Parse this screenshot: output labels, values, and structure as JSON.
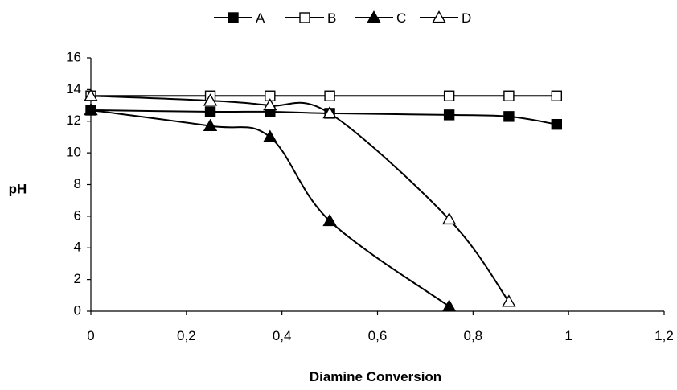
{
  "chart_data": {
    "type": "line",
    "title": "",
    "xlabel": "Diamine Conversion",
    "ylabel": "pH",
    "xlim": [
      0,
      1.2
    ],
    "ylim": [
      0,
      16
    ],
    "x_ticks": [
      "0",
      "0,2",
      "0,4",
      "0,6",
      "0,8",
      "1",
      "1,2"
    ],
    "y_ticks": [
      "0",
      "2",
      "4",
      "6",
      "8",
      "10",
      "12",
      "14",
      "16"
    ],
    "grid": false,
    "legend_position": "top",
    "series": [
      {
        "name": "A",
        "marker": "filled-square",
        "color": "#000000",
        "x": [
          0,
          0.25,
          0.375,
          0.5,
          0.75,
          0.875,
          0.975
        ],
        "y": [
          12.7,
          12.6,
          12.6,
          12.5,
          12.4,
          12.3,
          11.8
        ]
      },
      {
        "name": "B",
        "marker": "open-square",
        "color": "#000000",
        "x": [
          0,
          0.25,
          0.375,
          0.5,
          0.75,
          0.875,
          0.975
        ],
        "y": [
          13.6,
          13.6,
          13.6,
          13.6,
          13.6,
          13.6,
          13.6
        ]
      },
      {
        "name": "C",
        "marker": "filled-triangle",
        "color": "#000000",
        "x": [
          0,
          0.25,
          0.375,
          0.5,
          0.75
        ],
        "y": [
          12.7,
          11.7,
          11.0,
          5.7,
          0.3
        ]
      },
      {
        "name": "D",
        "marker": "open-triangle",
        "color": "#000000",
        "x": [
          0,
          0.25,
          0.375,
          0.5,
          0.75,
          0.875
        ],
        "y": [
          13.6,
          13.3,
          13.0,
          12.5,
          5.8,
          0.6
        ]
      }
    ]
  }
}
